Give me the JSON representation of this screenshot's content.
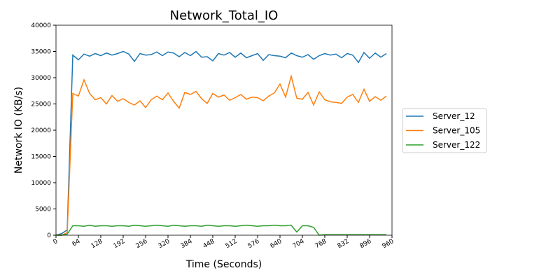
{
  "chart_data": {
    "type": "line",
    "title": "Network_Total_IO",
    "x_label": "Time (Seconds)",
    "y_label": "Network IO (KB/s)",
    "x": [
      0,
      16,
      32,
      48,
      64,
      80,
      96,
      112,
      128,
      144,
      160,
      176,
      192,
      208,
      224,
      240,
      256,
      272,
      288,
      304,
      320,
      336,
      352,
      368,
      384,
      400,
      416,
      432,
      448,
      464,
      480,
      496,
      512,
      528,
      544,
      560,
      576,
      592,
      608,
      624,
      640,
      656,
      672,
      688,
      704,
      720,
      736,
      752,
      768,
      784,
      800,
      816,
      832,
      848,
      864,
      880,
      896,
      912,
      928,
      944
    ],
    "series": [
      {
        "name": "Server_12",
        "color": "#1f77b4",
        "values": [
          0,
          300,
          1000,
          34300,
          33400,
          34500,
          34100,
          34600,
          34200,
          34700,
          34300,
          34600,
          35000,
          34500,
          33100,
          34600,
          34300,
          34400,
          34900,
          34200,
          34900,
          34700,
          34000,
          34800,
          34200,
          35000,
          33900,
          34000,
          33200,
          34600,
          34300,
          34800,
          33900,
          34700,
          33800,
          34200,
          34600,
          33300,
          34400,
          34200,
          34100,
          33800,
          34700,
          34200,
          33900,
          34400,
          33500,
          34200,
          34600,
          34300,
          34500,
          33800,
          34600,
          34300,
          32900,
          34800,
          33700,
          34700,
          33900,
          34600
        ]
      },
      {
        "name": "Server_105",
        "color": "#ff7f0e",
        "values": [
          0,
          0,
          500,
          27000,
          26500,
          29600,
          27000,
          25800,
          26200,
          25000,
          26600,
          25500,
          26000,
          25300,
          24800,
          25600,
          24300,
          25800,
          26500,
          25800,
          27100,
          25500,
          24200,
          27200,
          26800,
          27400,
          26000,
          25100,
          27000,
          26300,
          26700,
          25700,
          26200,
          26800,
          25900,
          26300,
          26200,
          25600,
          26500,
          27100,
          28800,
          26300,
          30300,
          26100,
          25900,
          27200,
          24800,
          27300,
          25800,
          25400,
          25300,
          25100,
          26300,
          26800,
          25300,
          27800,
          25500,
          26400,
          25700,
          26500
        ]
      },
      {
        "name": "Server_122",
        "color": "#2ca02c",
        "values": [
          0,
          0,
          200,
          1800,
          1800,
          1700,
          1900,
          1700,
          1800,
          1800,
          1700,
          1800,
          1800,
          1700,
          1900,
          1800,
          1700,
          1800,
          1900,
          1800,
          1700,
          1900,
          1800,
          1700,
          1800,
          1800,
          1700,
          1900,
          1800,
          1700,
          1800,
          1800,
          1700,
          1800,
          1900,
          1800,
          1700,
          1800,
          1800,
          1900,
          1800,
          1800,
          1900,
          600,
          1800,
          1800,
          1500,
          0,
          100,
          100,
          100,
          100,
          100,
          100,
          100,
          100,
          100,
          100,
          100,
          100
        ]
      }
    ],
    "xlim": [
      0,
      960
    ],
    "xticks": [
      0,
      64,
      128,
      192,
      256,
      320,
      384,
      448,
      512,
      576,
      640,
      704,
      768,
      832,
      896,
      960
    ],
    "ylim": [
      0,
      40000
    ],
    "yticks": [
      0,
      5000,
      10000,
      15000,
      20000,
      25000,
      30000,
      35000,
      40000
    ],
    "legend": "right"
  }
}
